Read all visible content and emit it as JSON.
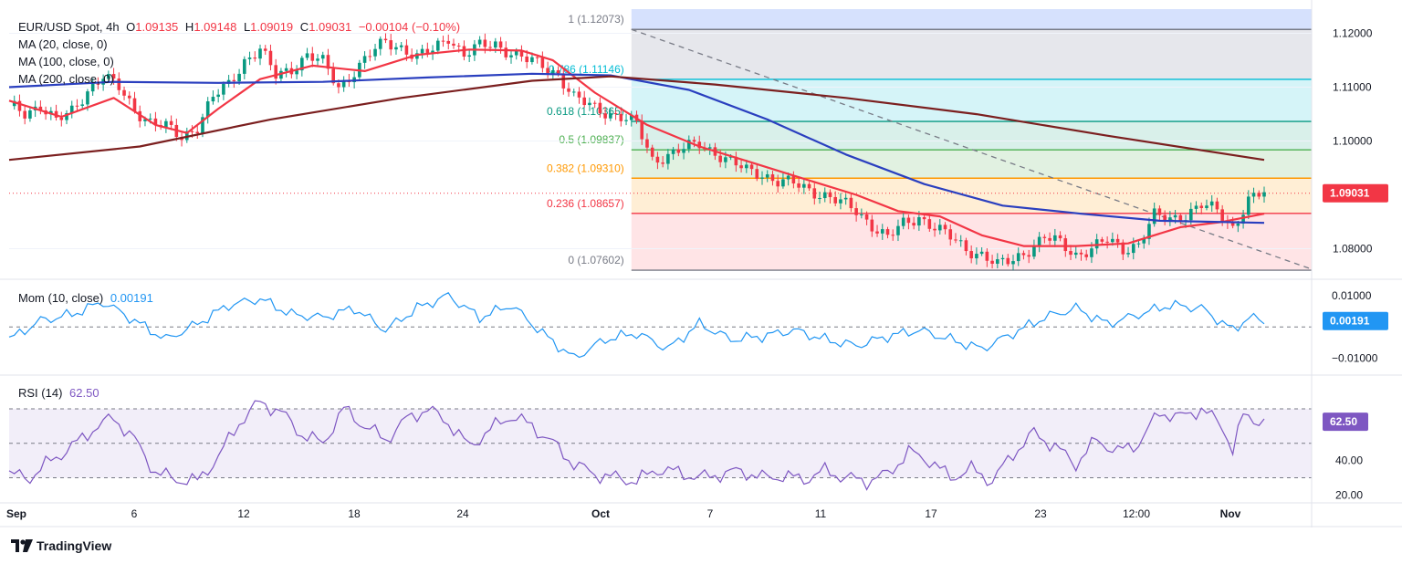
{
  "header": {
    "symbol": "EUR/USD Spot, 4h",
    "ohlc": [
      {
        "k": "O",
        "v": "1.09135"
      },
      {
        "k": "H",
        "v": "1.09148"
      },
      {
        "k": "L",
        "v": "1.09019"
      },
      {
        "k": "C",
        "v": "1.09031"
      }
    ],
    "change": "−0.00104 (−0.10%)",
    "ma_labels": [
      "MA (20, close, 0)",
      "MA (100, close, 0)",
      "MA (200, close, 0)"
    ]
  },
  "colors": {
    "bull": "#089981",
    "bear": "#f23645",
    "ma20": "#f23645",
    "ma100": "#2a3fbf",
    "ma200": "#7b1f1f",
    "mom": "#2196f3",
    "rsi": "#7e57c2"
  },
  "chart_data": [
    {
      "type": "candlestick",
      "title": "EUR/USD Spot, 4h",
      "ylim": [
        1.0745,
        1.1245
      ],
      "y_ticks": [
        "1.12000",
        "1.11000",
        "1.10000",
        "1.08000"
      ],
      "last_price": "1.09031",
      "x_ticks": [
        "Sep",
        "6",
        "12",
        "18",
        "24",
        "Oct",
        "7",
        "11",
        "17",
        "23",
        "12:00",
        "Nov"
      ],
      "fib_levels": [
        {
          "ratio": "1",
          "price": 1.12073,
          "label": "1 (1.12073)"
        },
        {
          "ratio": "0.786",
          "price": 1.11146,
          "label": "0.786 (1.11146)"
        },
        {
          "ratio": "0.618",
          "price": 1.10365,
          "label": "0.618 (1.10365)"
        },
        {
          "ratio": "0.5",
          "price": 1.09837,
          "label": "0.5 (1.09837)"
        },
        {
          "ratio": "0.382",
          "price": 1.0931,
          "label": "0.382 (1.09310)"
        },
        {
          "ratio": "0.236",
          "price": 1.08657,
          "label": "0.236 (1.08657)"
        },
        {
          "ratio": "0",
          "price": 1.07602,
          "label": "0 (1.07602)"
        }
      ],
      "close_path": [
        [
          0,
          1.1065
        ],
        [
          3,
          1.1052
        ],
        [
          6,
          1.1068
        ],
        [
          9,
          1.1035
        ],
        [
          12,
          1.1055
        ],
        [
          15,
          1.1095
        ],
        [
          18,
          1.112
        ],
        [
          21,
          1.1098
        ],
        [
          24,
          1.106
        ],
        [
          27,
          1.1035
        ],
        [
          30,
          1.1025
        ],
        [
          33,
          1.1008
        ],
        [
          36,
          1.1028
        ],
        [
          39,
          1.108
        ],
        [
          42,
          1.1105
        ],
        [
          45,
          1.115
        ],
        [
          48,
          1.117
        ],
        [
          51,
          1.112
        ],
        [
          54,
          1.1135
        ],
        [
          57,
          1.116
        ],
        [
          60,
          1.1145
        ],
        [
          63,
          1.11
        ],
        [
          66,
          1.113
        ],
        [
          69,
          1.116
        ],
        [
          72,
          1.1185
        ],
        [
          75,
          1.1175
        ],
        [
          78,
          1.1155
        ],
        [
          81,
          1.1168
        ],
        [
          84,
          1.1195
        ],
        [
          87,
          1.116
        ],
        [
          90,
          1.1175
        ],
        [
          93,
          1.118
        ],
        [
          96,
          1.1165
        ],
        [
          99,
          1.115
        ],
        [
          102,
          1.114
        ],
        [
          105,
          1.1125
        ],
        [
          108,
          1.108
        ],
        [
          111,
          1.1065
        ],
        [
          114,
          1.1055
        ],
        [
          117,
          1.1045
        ],
        [
          120,
          1.103
        ],
        [
          123,
          1.0965
        ],
        [
          126,
          1.0975
        ],
        [
          129,
          1.0985
        ],
        [
          132,
          1.0995
        ],
        [
          135,
          1.098
        ],
        [
          138,
          1.096
        ],
        [
          141,
          1.0945
        ],
        [
          144,
          1.094
        ],
        [
          147,
          1.0925
        ],
        [
          150,
          1.092
        ],
        [
          153,
          1.091
        ],
        [
          156,
          1.09
        ],
        [
          159,
          1.0885
        ],
        [
          162,
          1.087
        ],
        [
          165,
          1.0845
        ],
        [
          168,
          1.082
        ],
        [
          171,
          1.0845
        ],
        [
          174,
          1.086
        ],
        [
          177,
          1.084
        ],
        [
          180,
          1.082
        ],
        [
          183,
          1.08
        ],
        [
          186,
          1.079
        ],
        [
          189,
          1.0768
        ],
        [
          192,
          1.078
        ],
        [
          195,
          1.08
        ],
        [
          198,
          1.082
        ],
        [
          201,
          1.081
        ],
        [
          204,
          1.079
        ],
        [
          207,
          1.08
        ],
        [
          210,
          1.0815
        ],
        [
          213,
          1.08
        ],
        [
          216,
          1.081
        ],
        [
          219,
          1.086
        ],
        [
          222,
          1.0855
        ],
        [
          225,
          1.0865
        ],
        [
          228,
          1.088
        ],
        [
          231,
          1.087
        ],
        [
          234,
          1.084
        ],
        [
          237,
          1.089
        ],
        [
          240,
          1.0903
        ]
      ],
      "series": [
        {
          "name": "MA 20",
          "values": [
            [
              0,
              1.1075
            ],
            [
              10,
              1.1045
            ],
            [
              20,
              1.108
            ],
            [
              28,
              1.103
            ],
            [
              34,
              1.1015
            ],
            [
              40,
              1.106
            ],
            [
              48,
              1.1115
            ],
            [
              58,
              1.114
            ],
            [
              68,
              1.113
            ],
            [
              78,
              1.116
            ],
            [
              88,
              1.117
            ],
            [
              98,
              1.1168
            ],
            [
              104,
              1.115
            ],
            [
              112,
              1.109
            ],
            [
              122,
              1.103
            ],
            [
              132,
              1.099
            ],
            [
              142,
              1.096
            ],
            [
              152,
              1.093
            ],
            [
              162,
              1.09
            ],
            [
              170,
              1.087
            ],
            [
              178,
              1.086
            ],
            [
              186,
              1.0825
            ],
            [
              194,
              1.0805
            ],
            [
              204,
              1.0805
            ],
            [
              214,
              1.081
            ],
            [
              224,
              1.084
            ],
            [
              232,
              1.085
            ],
            [
              240,
              1.0865
            ]
          ]
        },
        {
          "name": "MA 100",
          "values": [
            [
              0,
              1.11
            ],
            [
              20,
              1.111
            ],
            [
              40,
              1.1108
            ],
            [
              60,
              1.111
            ],
            [
              80,
              1.1118
            ],
            [
              100,
              1.1125
            ],
            [
              115,
              1.1122
            ],
            [
              130,
              1.1095
            ],
            [
              145,
              1.104
            ],
            [
              160,
              1.0975
            ],
            [
              175,
              1.092
            ],
            [
              190,
              1.088
            ],
            [
              205,
              1.0865
            ],
            [
              220,
              1.0852
            ],
            [
              240,
              1.0848
            ]
          ]
        },
        {
          "name": "MA 200",
          "values": [
            [
              0,
              1.0965
            ],
            [
              25,
              1.099
            ],
            [
              50,
              1.104
            ],
            [
              75,
              1.108
            ],
            [
              100,
              1.1112
            ],
            [
              115,
              1.112
            ],
            [
              135,
              1.1105
            ],
            [
              160,
              1.108
            ],
            [
              185,
              1.105
            ],
            [
              210,
              1.101
            ],
            [
              240,
              1.0965
            ]
          ]
        }
      ]
    },
    {
      "type": "line",
      "title": "Mom (10, close)",
      "value_label": "0.00191",
      "ylim": [
        -0.0145,
        0.0135
      ],
      "y_ticks": [
        "0.01000",
        "−0.01000"
      ],
      "series": [
        {
          "name": "Momentum",
          "values": [
            [
              0,
              -0.004
            ],
            [
              6,
              0.002
            ],
            [
              12,
              0.004
            ],
            [
              18,
              0.008
            ],
            [
              24,
              0.002
            ],
            [
              30,
              -0.004
            ],
            [
              36,
              0.001
            ],
            [
              42,
              0.007
            ],
            [
              48,
              0.009
            ],
            [
              54,
              0.004
            ],
            [
              60,
              0.003
            ],
            [
              66,
              0.006
            ],
            [
              72,
              -0.001
            ],
            [
              78,
              0.006
            ],
            [
              84,
              0.01
            ],
            [
              90,
              0.003
            ],
            [
              96,
              0.007
            ],
            [
              102,
              -0.002
            ],
            [
              108,
              -0.01
            ],
            [
              114,
              -0.004
            ],
            [
              120,
              -0.002
            ],
            [
              126,
              -0.007
            ],
            [
              132,
              0.001
            ],
            [
              138,
              -0.004
            ],
            [
              144,
              -0.003
            ],
            [
              150,
              -0.001
            ],
            [
              156,
              -0.004
            ],
            [
              162,
              -0.006
            ],
            [
              168,
              -0.003
            ],
            [
              174,
              -0.001
            ],
            [
              180,
              -0.004
            ],
            [
              186,
              -0.007
            ],
            [
              192,
              -0.002
            ],
            [
              198,
              0.003
            ],
            [
              204,
              0.006
            ],
            [
              210,
              0.001
            ],
            [
              216,
              0.004
            ],
            [
              222,
              0.007
            ],
            [
              228,
              0.006
            ],
            [
              234,
              -0.001
            ],
            [
              237,
              0.003
            ],
            [
              240,
              0.00191
            ]
          ]
        }
      ]
    },
    {
      "type": "line",
      "title": "RSI (14)",
      "value_label": "62.50",
      "ylim": [
        17,
        88
      ],
      "y_ticks": [
        "40.00",
        "20.00"
      ],
      "bands": [
        30,
        50,
        70
      ],
      "series": [
        {
          "name": "RSI",
          "values": [
            [
              0,
              32
            ],
            [
              4,
              30
            ],
            [
              8,
              40
            ],
            [
              12,
              48
            ],
            [
              16,
              58
            ],
            [
              20,
              65
            ],
            [
              24,
              52
            ],
            [
              28,
              33
            ],
            [
              32,
              29
            ],
            [
              36,
              28
            ],
            [
              40,
              42
            ],
            [
              44,
              62
            ],
            [
              48,
              74
            ],
            [
              52,
              68
            ],
            [
              56,
              55
            ],
            [
              60,
              50
            ],
            [
              64,
              70
            ],
            [
              68,
              60
            ],
            [
              72,
              52
            ],
            [
              76,
              64
            ],
            [
              80,
              70
            ],
            [
              84,
              62
            ],
            [
              88,
              48
            ],
            [
              92,
              58
            ],
            [
              96,
              66
            ],
            [
              100,
              60
            ],
            [
              104,
              50
            ],
            [
              108,
              38
            ],
            [
              112,
              32
            ],
            [
              116,
              30
            ],
            [
              120,
              28
            ],
            [
              124,
              35
            ],
            [
              128,
              33
            ],
            [
              132,
              30
            ],
            [
              136,
              32
            ],
            [
              140,
              34
            ],
            [
              144,
              30
            ],
            [
              148,
              31
            ],
            [
              152,
              29
            ],
            [
              156,
              34
            ],
            [
              160,
              30
            ],
            [
              164,
              28
            ],
            [
              168,
              32
            ],
            [
              172,
              45
            ],
            [
              176,
              40
            ],
            [
              180,
              30
            ],
            [
              184,
              35
            ],
            [
              188,
              28
            ],
            [
              192,
              44
            ],
            [
              196,
              56
            ],
            [
              200,
              48
            ],
            [
              204,
              38
            ],
            [
              208,
              52
            ],
            [
              212,
              45
            ],
            [
              216,
              50
            ],
            [
              220,
              68
            ],
            [
              224,
              65
            ],
            [
              228,
              70
            ],
            [
              232,
              60
            ],
            [
              234,
              46
            ],
            [
              236,
              66
            ],
            [
              240,
              62.5
            ]
          ]
        }
      ]
    }
  ],
  "branding": {
    "logo_text": "TradingView"
  }
}
